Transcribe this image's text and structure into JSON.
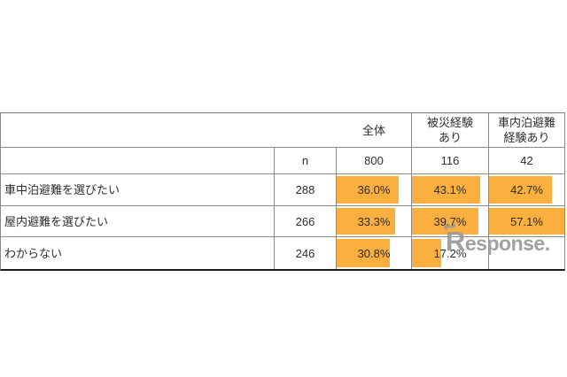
{
  "table": {
    "header_columns": [
      {
        "label": ""
      },
      {
        "label": "全体"
      },
      {
        "label": "被災経験\nあり"
      },
      {
        "label": "車内泊避難\n経験あり"
      }
    ],
    "n_row": {
      "label": "n",
      "values": [
        "800",
        "116",
        "42"
      ]
    },
    "rows": [
      {
        "label": "車中泊避難を選びたい",
        "n": "288",
        "cells": [
          {
            "text": "36.0%",
            "fill": 0.835
          },
          {
            "text": "43.1%",
            "fill": 0.89
          },
          {
            "text": "42.7%",
            "fill": 0.83
          }
        ]
      },
      {
        "label": "屋内避難を選びたい",
        "n": "266",
        "cells": [
          {
            "text": "33.3%",
            "fill": 0.79
          },
          {
            "text": "39.7%",
            "fill": 0.87
          },
          {
            "text": "57.1%",
            "fill": 1.0
          }
        ]
      },
      {
        "label": "わからない",
        "n": "246",
        "cells": [
          {
            "text": "30.8%",
            "fill": 0.72
          },
          {
            "text": "17.2%",
            "fill": 0.38
          },
          {
            "text": "",
            "fill": 0
          }
        ]
      }
    ]
  },
  "watermark": {
    "text_initial": "R",
    "text_rest": "esponse.",
    "curl": "↩",
    "arrow": "→",
    "color": "#9a9a9a"
  },
  "colors": {
    "bar": "#FBAF3E",
    "grid_line": "#8a8a8a",
    "bottom_border": "#1c1c1c",
    "text": "#2e2e2e",
    "background": "#ffffff"
  },
  "chart_data": {
    "type": "table",
    "title": "",
    "columns": [
      "",
      "n",
      "全体",
      "被災経験あり",
      "車内泊避難経験あり"
    ],
    "n_by_group": {
      "全体": 800,
      "被災経験あり": 116,
      "車内泊避難経験あり": 42
    },
    "rows": [
      {
        "label": "車中泊避難を選びたい",
        "n": 288,
        "values": {
          "全体": 36.0,
          "被災経験あり": 43.1,
          "車内泊避難経験あり": 42.7
        }
      },
      {
        "label": "屋内避難を選びたい",
        "n": 266,
        "values": {
          "全体": 33.3,
          "被災経験あり": 39.7,
          "車内泊避難経験あり": 57.1
        }
      },
      {
        "label": "わからない",
        "n": 246,
        "values": {
          "全体": 30.8,
          "被災経験あり": 17.2,
          "車内泊避難経験あり": null
        }
      }
    ],
    "unit": "%",
    "bar_style": "in-cell data bars, left-aligned, scaled fill",
    "bar_color": "#FBAF3E",
    "grid": true,
    "legend": false
  }
}
